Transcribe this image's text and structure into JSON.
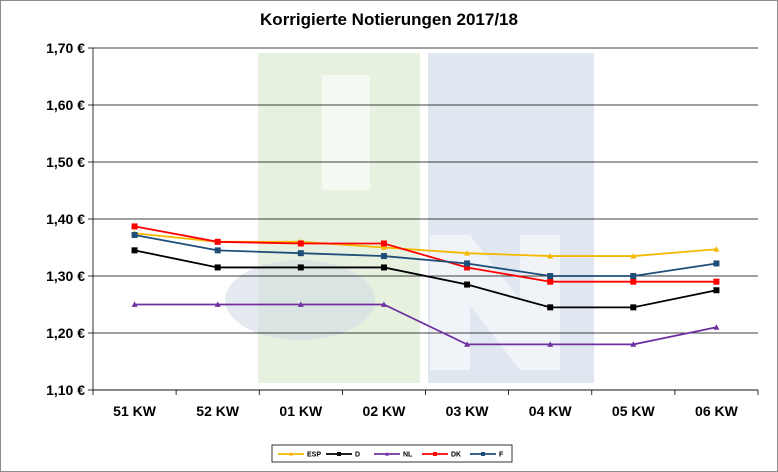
{
  "chart_data": {
    "type": "line",
    "title": "Korrigierte Notierungen 2017/18",
    "xlabel": "",
    "ylabel": "",
    "categories": [
      "51 KW",
      "52 KW",
      "01 KW",
      "02 KW",
      "03 KW",
      "04 KW",
      "05 KW",
      "06 KW"
    ],
    "y_tick_labels": [
      "1,10 €",
      "1,20 €",
      "1,30 €",
      "1,40 €",
      "1,50 €",
      "1,60 €",
      "1,70 €"
    ],
    "ylim": [
      1.1,
      1.7
    ],
    "y_step": 0.1,
    "grid": "horizontal",
    "legend_position": "bottom",
    "series": [
      {
        "name": "ESP",
        "color": "#f5b800",
        "marker": "triangle",
        "values": [
          1.375,
          1.36,
          1.36,
          1.35,
          1.34,
          1.335,
          1.335,
          1.347
        ]
      },
      {
        "name": "D",
        "color": "#000000",
        "marker": "square",
        "values": [
          1.345,
          1.315,
          1.315,
          1.315,
          1.285,
          1.245,
          1.245,
          1.275
        ]
      },
      {
        "name": "NL",
        "color": "#7030a0",
        "marker": "triangle",
        "values": [
          1.25,
          1.25,
          1.25,
          1.25,
          1.18,
          1.18,
          1.18,
          1.21
        ]
      },
      {
        "name": "DK",
        "color": "#ff0000",
        "marker": "square",
        "values": [
          1.387,
          1.36,
          1.357,
          1.357,
          1.315,
          1.29,
          1.29,
          1.29
        ]
      },
      {
        "name": "F",
        "color": "#1f4e79",
        "marker": "square",
        "values": [
          1.372,
          1.345,
          1.34,
          1.335,
          1.322,
          1.3,
          1.3,
          1.322
        ]
      }
    ]
  }
}
